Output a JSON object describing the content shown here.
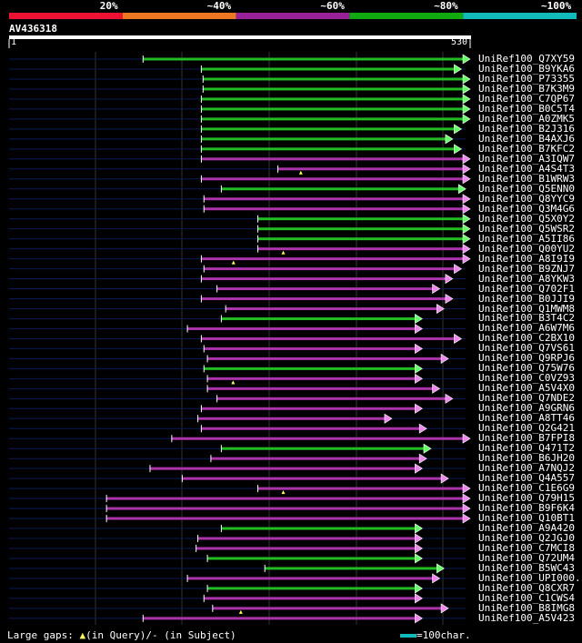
{
  "header": {
    "scale_labels": [
      "20%",
      "~40%",
      "~60%",
      "~80%",
      "~100%"
    ],
    "scale_colors": [
      "#ee1133",
      "#ee7722",
      "#992299",
      "#11aa11",
      "#11bbbb"
    ],
    "query_id": "AV436318",
    "ruler_start": "1",
    "ruler_end": "530"
  },
  "chart_data": {
    "type": "alignment-overview",
    "query_length": 530,
    "hits": [
      {
        "id": "UniRef100_Q7XY59",
        "start": 155,
        "end": 530,
        "color": "green",
        "subject_arrow": "right",
        "marker": null
      },
      {
        "id": "UniRef100_B9YKA6",
        "start": 222,
        "end": 520,
        "color": "green",
        "subject_arrow": "right",
        "marker": null
      },
      {
        "id": "UniRef100_P73355",
        "start": 224,
        "end": 530,
        "color": "green",
        "subject_arrow": "right",
        "marker": null
      },
      {
        "id": "UniRef100_B7K3M9",
        "start": 224,
        "end": 530,
        "color": "green",
        "subject_arrow": "right",
        "marker": null
      },
      {
        "id": "UniRef100_C7QP67",
        "start": 222,
        "end": 530,
        "color": "green",
        "subject_arrow": "right",
        "marker": null
      },
      {
        "id": "UniRef100_B0C5T4",
        "start": 222,
        "end": 530,
        "color": "green",
        "subject_arrow": "right",
        "marker": null
      },
      {
        "id": "UniRef100_A0ZMK5",
        "start": 222,
        "end": 530,
        "color": "green",
        "subject_arrow": "right",
        "marker": null
      },
      {
        "id": "UniRef100_B2J316",
        "start": 222,
        "end": 520,
        "color": "green",
        "subject_arrow": "right",
        "marker": null
      },
      {
        "id": "UniRef100_B4AXJ6",
        "start": 222,
        "end": 510,
        "color": "green",
        "subject_arrow": "right",
        "marker": null
      },
      {
        "id": "UniRef100_B7KFC2",
        "start": 222,
        "end": 520,
        "color": "green",
        "subject_arrow": "right",
        "marker": null
      },
      {
        "id": "UniRef100_A3IQW7",
        "start": 222,
        "end": 530,
        "color": "magenta",
        "subject_arrow": "right",
        "marker": null
      },
      {
        "id": "UniRef100_A4S4T3",
        "start": 310,
        "end": 530,
        "color": "magenta",
        "subject_arrow": "right",
        "marker": "query"
      },
      {
        "id": "UniRef100_B1WRW3",
        "start": 222,
        "end": 530,
        "color": "magenta",
        "subject_arrow": "right",
        "marker": null
      },
      {
        "id": "UniRef100_Q5ENN0",
        "start": 245,
        "end": 525,
        "color": "green",
        "subject_arrow": "right",
        "marker": null
      },
      {
        "id": "UniRef100_Q8YYC9",
        "start": 225,
        "end": 530,
        "color": "magenta",
        "subject_arrow": "right",
        "marker": null
      },
      {
        "id": "UniRef100_Q3M4G6",
        "start": 225,
        "end": 530,
        "color": "magenta",
        "subject_arrow": "right",
        "marker": null
      },
      {
        "id": "UniRef100_Q5X0Y2",
        "start": 287,
        "end": 530,
        "color": "green",
        "subject_arrow": "right",
        "marker": null
      },
      {
        "id": "UniRef100_Q5WSR2",
        "start": 287,
        "end": 530,
        "color": "green",
        "subject_arrow": "right",
        "marker": null
      },
      {
        "id": "UniRef100_A5II86",
        "start": 287,
        "end": 530,
        "color": "green",
        "subject_arrow": "right",
        "marker": null
      },
      {
        "id": "UniRef100_Q00YU2",
        "start": 287,
        "end": 530,
        "color": "magenta",
        "subject_arrow": "right",
        "marker": "query"
      },
      {
        "id": "UniRef100_A8I9I9",
        "start": 222,
        "end": 530,
        "color": "magenta",
        "subject_arrow": "right",
        "marker": "query"
      },
      {
        "id": "UniRef100_B9ZNJ7",
        "start": 225,
        "end": 520,
        "color": "magenta",
        "subject_arrow": "right",
        "marker": null
      },
      {
        "id": "UniRef100_A8YKW3",
        "start": 222,
        "end": 510,
        "color": "magenta",
        "subject_arrow": "right",
        "marker": null
      },
      {
        "id": "UniRef100_Q702F1",
        "start": 240,
        "end": 495,
        "color": "magenta",
        "subject_arrow": "right",
        "marker": null
      },
      {
        "id": "UniRef100_B0JJI9",
        "start": 222,
        "end": 510,
        "color": "magenta",
        "subject_arrow": "right",
        "marker": null
      },
      {
        "id": "UniRef100_Q1MWM8",
        "start": 250,
        "end": 500,
        "color": "magenta",
        "subject_arrow": "right",
        "marker": null
      },
      {
        "id": "UniRef100_B3T4C2",
        "start": 245,
        "end": 475,
        "color": "green",
        "subject_arrow": "right",
        "marker": null
      },
      {
        "id": "UniRef100_A6W7M6",
        "start": 206,
        "end": 475,
        "color": "magenta",
        "subject_arrow": "right",
        "marker": null
      },
      {
        "id": "UniRef100_C2BX10",
        "start": 222,
        "end": 520,
        "color": "magenta",
        "subject_arrow": "right",
        "marker": null
      },
      {
        "id": "UniRef100_Q7VS61",
        "start": 225,
        "end": 475,
        "color": "magenta",
        "subject_arrow": "right",
        "marker": null
      },
      {
        "id": "UniRef100_Q9RPJ6",
        "start": 229,
        "end": 505,
        "color": "magenta",
        "subject_arrow": "right",
        "marker": null
      },
      {
        "id": "UniRef100_Q75W76",
        "start": 225,
        "end": 475,
        "color": "green",
        "subject_arrow": "right",
        "marker": null
      },
      {
        "id": "UniRef100_C0VZ93",
        "start": 229,
        "end": 475,
        "color": "magenta",
        "subject_arrow": "right",
        "marker": "query"
      },
      {
        "id": "UniRef100_A5V4X0",
        "start": 229,
        "end": 495,
        "color": "magenta",
        "subject_arrow": "right",
        "marker": null
      },
      {
        "id": "UniRef100_Q7NDE2",
        "start": 240,
        "end": 510,
        "color": "magenta",
        "subject_arrow": "right",
        "marker": null
      },
      {
        "id": "UniRef100_A9GRN6",
        "start": 222,
        "end": 475,
        "color": "magenta",
        "subject_arrow": "right",
        "marker": null
      },
      {
        "id": "UniRef100_A8TT46",
        "start": 218,
        "end": 440,
        "color": "magenta",
        "subject_arrow": "right",
        "marker": null
      },
      {
        "id": "UniRef100_Q2G421",
        "start": 222,
        "end": 480,
        "color": "magenta",
        "subject_arrow": "right",
        "marker": null
      },
      {
        "id": "UniRef100_B7FPI8",
        "start": 188,
        "end": 530,
        "color": "magenta",
        "subject_arrow": "right",
        "marker": null
      },
      {
        "id": "UniRef100_Q471T2",
        "start": 245,
        "end": 485,
        "color": "green",
        "subject_arrow": "right",
        "marker": null
      },
      {
        "id": "UniRef100_B6JH20",
        "start": 233,
        "end": 480,
        "color": "magenta",
        "subject_arrow": "right",
        "marker": null
      },
      {
        "id": "UniRef100_A7NQJ2",
        "start": 163,
        "end": 475,
        "color": "magenta",
        "subject_arrow": "right",
        "marker": null
      },
      {
        "id": "UniRef100_Q4A557",
        "start": 200,
        "end": 505,
        "color": "magenta",
        "subject_arrow": "right",
        "marker": null
      },
      {
        "id": "UniRef100_C1E6G9",
        "start": 287,
        "end": 530,
        "color": "magenta",
        "subject_arrow": "right",
        "marker": "query"
      },
      {
        "id": "UniRef100_Q79H15",
        "start": 113,
        "end": 530,
        "color": "magenta",
        "subject_arrow": "right",
        "marker": null
      },
      {
        "id": "UniRef100_B9F6K4",
        "start": 113,
        "end": 530,
        "color": "magenta",
        "subject_arrow": "right",
        "marker": null
      },
      {
        "id": "UniRef100_Q10BT1",
        "start": 113,
        "end": 530,
        "color": "magenta",
        "subject_arrow": "right",
        "marker": null
      },
      {
        "id": "UniRef100_A9A420",
        "start": 245,
        "end": 475,
        "color": "green",
        "subject_arrow": "right",
        "marker": null
      },
      {
        "id": "UniRef100_Q2JGJ0",
        "start": 218,
        "end": 475,
        "color": "magenta",
        "subject_arrow": "right",
        "marker": null
      },
      {
        "id": "UniRef100_C7MCI8",
        "start": 216,
        "end": 475,
        "color": "magenta",
        "subject_arrow": "right",
        "marker": null
      },
      {
        "id": "UniRef100_Q72UM4",
        "start": 229,
        "end": 475,
        "color": "green",
        "subject_arrow": "right",
        "marker": null
      },
      {
        "id": "UniRef100_B5WC43",
        "start": 295,
        "end": 500,
        "color": "green",
        "subject_arrow": "right",
        "marker": null
      },
      {
        "id": "UniRef100_UPI000..",
        "start": 206,
        "end": 495,
        "color": "magenta",
        "subject_arrow": "right",
        "marker": null
      },
      {
        "id": "UniRef100_Q8CXR7",
        "start": 229,
        "end": 475,
        "color": "green",
        "subject_arrow": "right",
        "marker": null
      },
      {
        "id": "UniRef100_C1CWS4",
        "start": 225,
        "end": 475,
        "color": "magenta",
        "subject_arrow": "right",
        "marker": null
      },
      {
        "id": "UniRef100_B8IMG8",
        "start": 235,
        "end": 505,
        "color": "magenta",
        "subject_arrow": "right",
        "marker": "query"
      },
      {
        "id": "UniRef100_A5V423",
        "start": 155,
        "end": 475,
        "color": "magenta",
        "subject_arrow": "right",
        "marker": null
      }
    ]
  },
  "footer": {
    "legend_prefix": "Large gaps: ",
    "legend_query": "(in Query)/",
    "legend_subject": "- (in Subject)",
    "scale_text": "=100char."
  }
}
